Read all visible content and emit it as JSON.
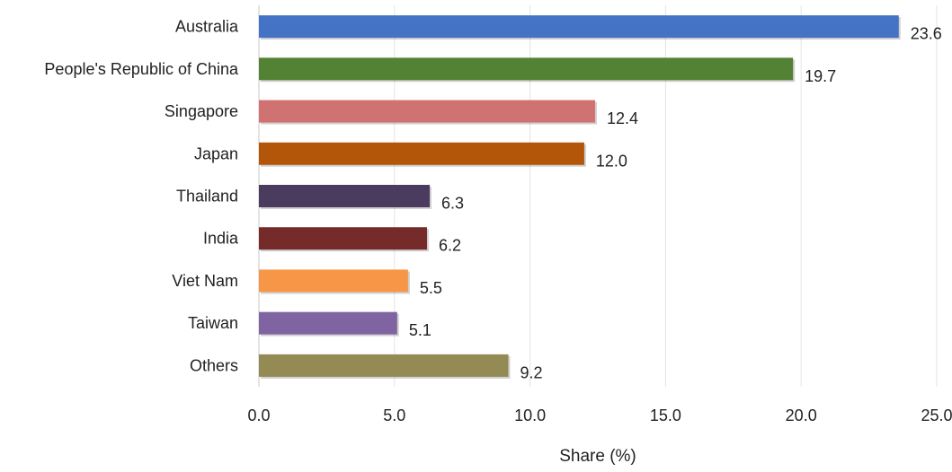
{
  "chart_data": {
    "type": "bar",
    "orientation": "horizontal",
    "categories": [
      "Australia",
      "People's Republic of China",
      "Singapore",
      "Japan",
      "Thailand",
      "India",
      "Viet Nam",
      "Taiwan",
      "Others"
    ],
    "values": [
      23.6,
      19.7,
      12.4,
      12.0,
      6.3,
      6.2,
      5.5,
      5.1,
      9.2
    ],
    "value_labels": [
      "23.6",
      "19.7",
      "12.4",
      "12.0",
      "6.3",
      "6.2",
      "5.5",
      "5.1",
      "9.2"
    ],
    "colors": [
      "#4472c4",
      "#548235",
      "#d07272",
      "#b4560a",
      "#4a3b5f",
      "#762b2b",
      "#f79646",
      "#8064a2",
      "#948a54"
    ],
    "xlabel": "Share (%)",
    "ylabel": "",
    "xlim": [
      0,
      25
    ],
    "xticks": [
      0,
      5,
      10,
      15,
      20,
      25
    ],
    "xtick_labels": [
      "0.0",
      "5.0",
      "10.0",
      "15.0",
      "20.0",
      "25.0"
    ],
    "grid": "vertical",
    "legend": "none"
  }
}
